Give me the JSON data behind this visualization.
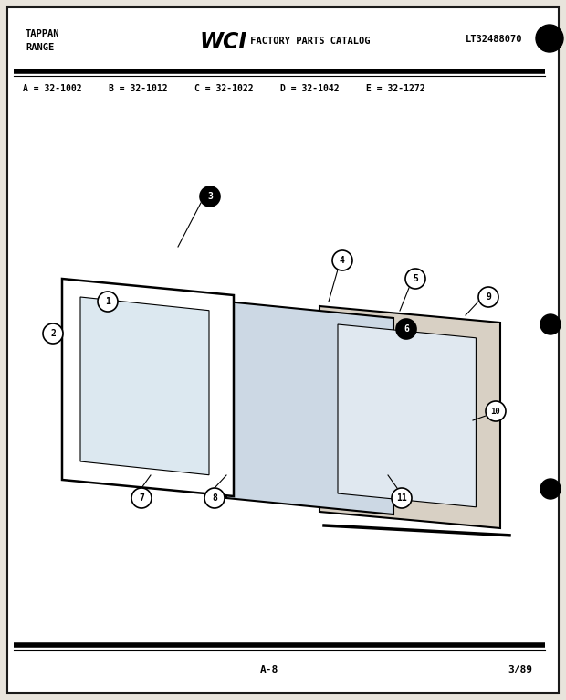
{
  "title_left": "TAPPAN\nRANGE",
  "title_center": "WCI FACTORY PARTS CATALOG",
  "title_right": "LT32488070",
  "model_codes": "A = 32-1002     B = 32-1012     C = 32-1022     D = 32-1042     E = 32-1272",
  "footer_left": "A-8",
  "footer_right": "3/89",
  "bg_color": "#f0ede8",
  "border_color": "#1a1a1a",
  "line_color": "#1a1a1a",
  "part_numbers": [
    "1",
    "2",
    "3",
    "4",
    "5",
    "6",
    "7",
    "8",
    "9",
    "10",
    "11"
  ],
  "page_bg": "#e8e4dc"
}
